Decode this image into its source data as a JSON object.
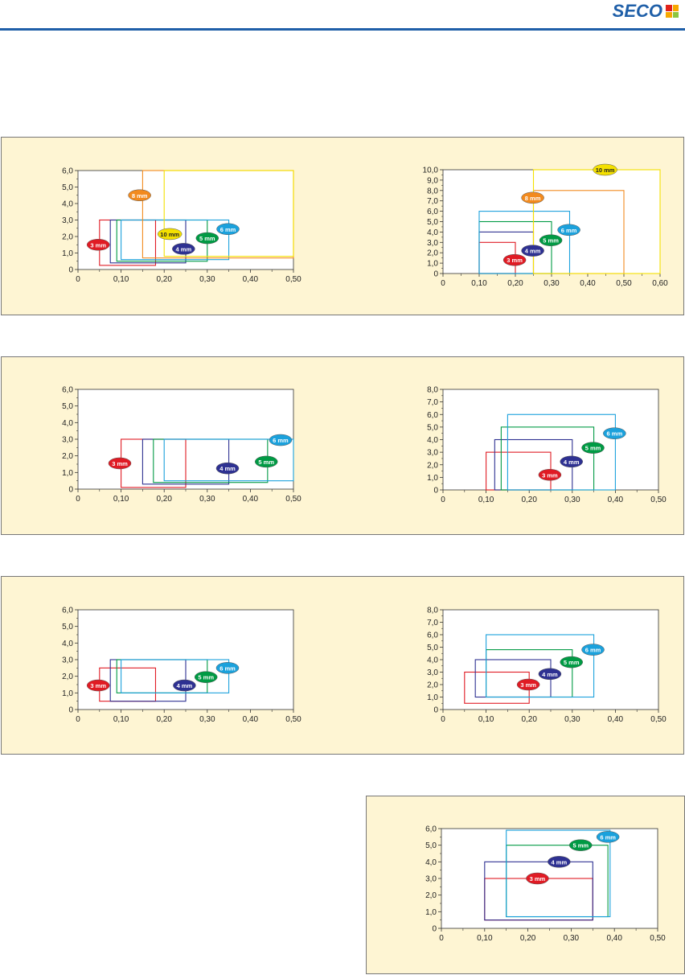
{
  "header": {
    "logo_text": "SECO",
    "logo_colors": [
      "#e2231a",
      "#f7a800",
      "#f7a800",
      "#8cc63f"
    ],
    "rule_color": "#1f5fa8"
  },
  "panel_background": "#fef5d3",
  "chart_data": [
    {
      "type": "bar",
      "xlim": [
        0,
        0.5
      ],
      "ylim": [
        0,
        6.0
      ],
      "x_ticks": [
        "0",
        "0,10",
        "0,20",
        "0,30",
        "0,40",
        "0,50"
      ],
      "y_ticks": [
        "0",
        "1,0",
        "2,0",
        "3,0",
        "4,0",
        "5,0",
        "6,0"
      ],
      "series": [
        {
          "name": "3 mm",
          "color": "#e01b24",
          "rect": [
            0.05,
            0.25,
            0.18,
            3.0
          ],
          "label_at": [
            0.047,
            1.5
          ]
        },
        {
          "name": "4 mm",
          "color": "#2e3192",
          "rect": [
            0.075,
            0.4,
            0.25,
            3.0
          ],
          "label_at": [
            0.245,
            1.25
          ]
        },
        {
          "name": "5 mm",
          "color": "#009a44",
          "rect": [
            0.09,
            0.5,
            0.3,
            3.0
          ],
          "label_at": [
            0.3,
            1.9
          ]
        },
        {
          "name": "6 mm",
          "color": "#1ba1dc",
          "rect": [
            0.1,
            0.6,
            0.35,
            3.0
          ],
          "label_at": [
            0.348,
            2.45
          ]
        },
        {
          "name": "8 mm",
          "color": "#f28a1e",
          "rect": [
            0.15,
            0.7,
            0.5,
            6.0
          ],
          "label_at": [
            0.143,
            4.5
          ]
        },
        {
          "name": "10 mm",
          "color": "#f4e000",
          "rect": [
            0.2,
            0.8,
            0.5,
            6.0
          ],
          "label_at": [
            0.213,
            2.15
          ]
        }
      ]
    },
    {
      "type": "bar",
      "xlim": [
        0,
        0.6
      ],
      "ylim": [
        0,
        10.0
      ],
      "x_ticks": [
        "0",
        "0,10",
        "0,20",
        "0,30",
        "0,40",
        "0,50",
        "0,60"
      ],
      "y_ticks": [
        "0",
        "1,0",
        "2,0",
        "3,0",
        "4,0",
        "5,0",
        "6,0",
        "7,0",
        "8,0",
        "9,0",
        "10,0"
      ],
      "series": [
        {
          "name": "3 mm",
          "color": "#e01b24",
          "rect": [
            0.1,
            0.0,
            0.2,
            3.0
          ],
          "label_at": [
            0.198,
            1.3
          ]
        },
        {
          "name": "4 mm",
          "color": "#2e3192",
          "rect": [
            0.1,
            0.0,
            0.25,
            4.0
          ],
          "label_at": [
            0.248,
            2.2
          ]
        },
        {
          "name": "5 mm",
          "color": "#009a44",
          "rect": [
            0.1,
            0.0,
            0.3,
            5.0
          ],
          "label_at": [
            0.298,
            3.2
          ]
        },
        {
          "name": "6 mm",
          "color": "#1ba1dc",
          "rect": [
            0.1,
            0.0,
            0.35,
            6.0
          ],
          "label_at": [
            0.348,
            4.2
          ]
        },
        {
          "name": "8 mm",
          "color": "#f28a1e",
          "rect": [
            0.25,
            0.0,
            0.5,
            8.0
          ],
          "label_at": [
            0.248,
            7.3
          ]
        },
        {
          "name": "10 mm",
          "color": "#f4e000",
          "rect": [
            0.25,
            0.0,
            0.6,
            10.0
          ],
          "label_at": [
            0.448,
            10.0
          ]
        }
      ]
    },
    {
      "type": "bar",
      "xlim": [
        0,
        0.5
      ],
      "ylim": [
        0,
        6.0
      ],
      "x_ticks": [
        "0",
        "0,10",
        "0,20",
        "0,30",
        "0,40",
        "0,50"
      ],
      "y_ticks": [
        "0",
        "1,0",
        "2,0",
        "3,0",
        "4,0",
        "5,0",
        "6,0"
      ],
      "series": [
        {
          "name": "3 mm",
          "color": "#e01b24",
          "rect": [
            0.1,
            0.1,
            0.25,
            3.0
          ],
          "label_at": [
            0.097,
            1.55
          ]
        },
        {
          "name": "4 mm",
          "color": "#2e3192",
          "rect": [
            0.15,
            0.3,
            0.35,
            3.0
          ],
          "label_at": [
            0.347,
            1.25
          ]
        },
        {
          "name": "5 mm",
          "color": "#009a44",
          "rect": [
            0.175,
            0.4,
            0.44,
            3.0
          ],
          "label_at": [
            0.437,
            1.65
          ]
        },
        {
          "name": "6 mm",
          "color": "#1ba1dc",
          "rect": [
            0.2,
            0.5,
            0.5,
            3.0
          ],
          "label_at": [
            0.47,
            2.95
          ]
        }
      ]
    },
    {
      "type": "bar",
      "xlim": [
        0,
        0.5
      ],
      "ylim": [
        0,
        8.0
      ],
      "x_ticks": [
        "0",
        "0,10",
        "0,20",
        "0,30",
        "0,40",
        "0,50"
      ],
      "y_ticks": [
        "0",
        "1,0",
        "2,0",
        "3,0",
        "4,0",
        "5,0",
        "6,0",
        "7,0",
        "8,0"
      ],
      "series": [
        {
          "name": "3 mm",
          "color": "#e01b24",
          "rect": [
            0.1,
            0.0,
            0.25,
            3.0
          ],
          "label_at": [
            0.248,
            1.2
          ]
        },
        {
          "name": "4 mm",
          "color": "#2e3192",
          "rect": [
            0.12,
            0.0,
            0.3,
            4.0
          ],
          "label_at": [
            0.298,
            2.25
          ]
        },
        {
          "name": "5 mm",
          "color": "#009a44",
          "rect": [
            0.135,
            0.0,
            0.35,
            5.0
          ],
          "label_at": [
            0.348,
            3.35
          ]
        },
        {
          "name": "6 mm",
          "color": "#1ba1dc",
          "rect": [
            0.15,
            0.0,
            0.4,
            6.0
          ],
          "label_at": [
            0.398,
            4.5
          ]
        }
      ]
    },
    {
      "type": "bar",
      "xlim": [
        0,
        0.5
      ],
      "ylim": [
        0,
        6.0
      ],
      "x_ticks": [
        "0",
        "0,10",
        "0,20",
        "0,30",
        "0,40",
        "0,50"
      ],
      "y_ticks": [
        "0",
        "1,0",
        "2,0",
        "3,0",
        "4,0",
        "5,0",
        "6,0"
      ],
      "series": [
        {
          "name": "3 mm",
          "color": "#e01b24",
          "rect": [
            0.05,
            0.5,
            0.18,
            2.5
          ],
          "label_at": [
            0.047,
            1.45
          ]
        },
        {
          "name": "4 mm",
          "color": "#2e3192",
          "rect": [
            0.075,
            0.5,
            0.25,
            3.0
          ],
          "label_at": [
            0.247,
            1.45
          ]
        },
        {
          "name": "5 mm",
          "color": "#009a44",
          "rect": [
            0.09,
            1.0,
            0.3,
            3.0
          ],
          "label_at": [
            0.297,
            1.95
          ]
        },
        {
          "name": "6 mm",
          "color": "#1ba1dc",
          "rect": [
            0.1,
            1.0,
            0.35,
            3.0
          ],
          "label_at": [
            0.347,
            2.5
          ]
        }
      ]
    },
    {
      "type": "bar",
      "xlim": [
        0,
        0.5
      ],
      "ylim": [
        0,
        8.0
      ],
      "x_ticks": [
        "0",
        "0,10",
        "0,20",
        "0,30",
        "0,40",
        "0,50"
      ],
      "y_ticks": [
        "0",
        "1,0",
        "2,0",
        "3,0",
        "4,0",
        "5,0",
        "6,0",
        "7,0",
        "8,0"
      ],
      "series": [
        {
          "name": "3 mm",
          "color": "#e01b24",
          "rect": [
            0.05,
            0.5,
            0.2,
            3.0
          ],
          "label_at": [
            0.198,
            2.0
          ]
        },
        {
          "name": "4 mm",
          "color": "#2e3192",
          "rect": [
            0.075,
            1.0,
            0.25,
            4.0
          ],
          "label_at": [
            0.248,
            2.85
          ]
        },
        {
          "name": "5 mm",
          "color": "#009a44",
          "rect": [
            0.1,
            1.0,
            0.3,
            4.8
          ],
          "label_at": [
            0.298,
            3.8
          ]
        },
        {
          "name": "6 mm",
          "color": "#1ba1dc",
          "rect": [
            0.1,
            1.0,
            0.35,
            6.0
          ],
          "label_at": [
            0.348,
            4.8
          ]
        }
      ]
    },
    {
      "type": "bar",
      "xlim": [
        0,
        0.5
      ],
      "ylim": [
        0,
        6.0
      ],
      "x_ticks": [
        "0",
        "0,10",
        "0,20",
        "0,30",
        "0,40",
        "0,50"
      ],
      "y_ticks": [
        "0",
        "1,0",
        "2,0",
        "3,0",
        "4,0",
        "5,0",
        "6,0"
      ],
      "series": [
        {
          "name": "3 mm",
          "color": "#e01b24",
          "rect": [
            0.1,
            0.5,
            0.35,
            3.0
          ],
          "label_at": [
            0.222,
            3.0
          ]
        },
        {
          "name": "4 mm",
          "color": "#2e3192",
          "rect": [
            0.1,
            0.5,
            0.35,
            4.0
          ],
          "label_at": [
            0.272,
            4.0
          ]
        },
        {
          "name": "5 mm",
          "color": "#009a44",
          "rect": [
            0.15,
            0.7,
            0.385,
            5.0
          ],
          "label_at": [
            0.322,
            5.0
          ]
        },
        {
          "name": "6 mm",
          "color": "#1ba1dc",
          "rect": [
            0.15,
            0.7,
            0.39,
            5.9
          ],
          "label_at": [
            0.385,
            5.5
          ]
        }
      ]
    }
  ]
}
